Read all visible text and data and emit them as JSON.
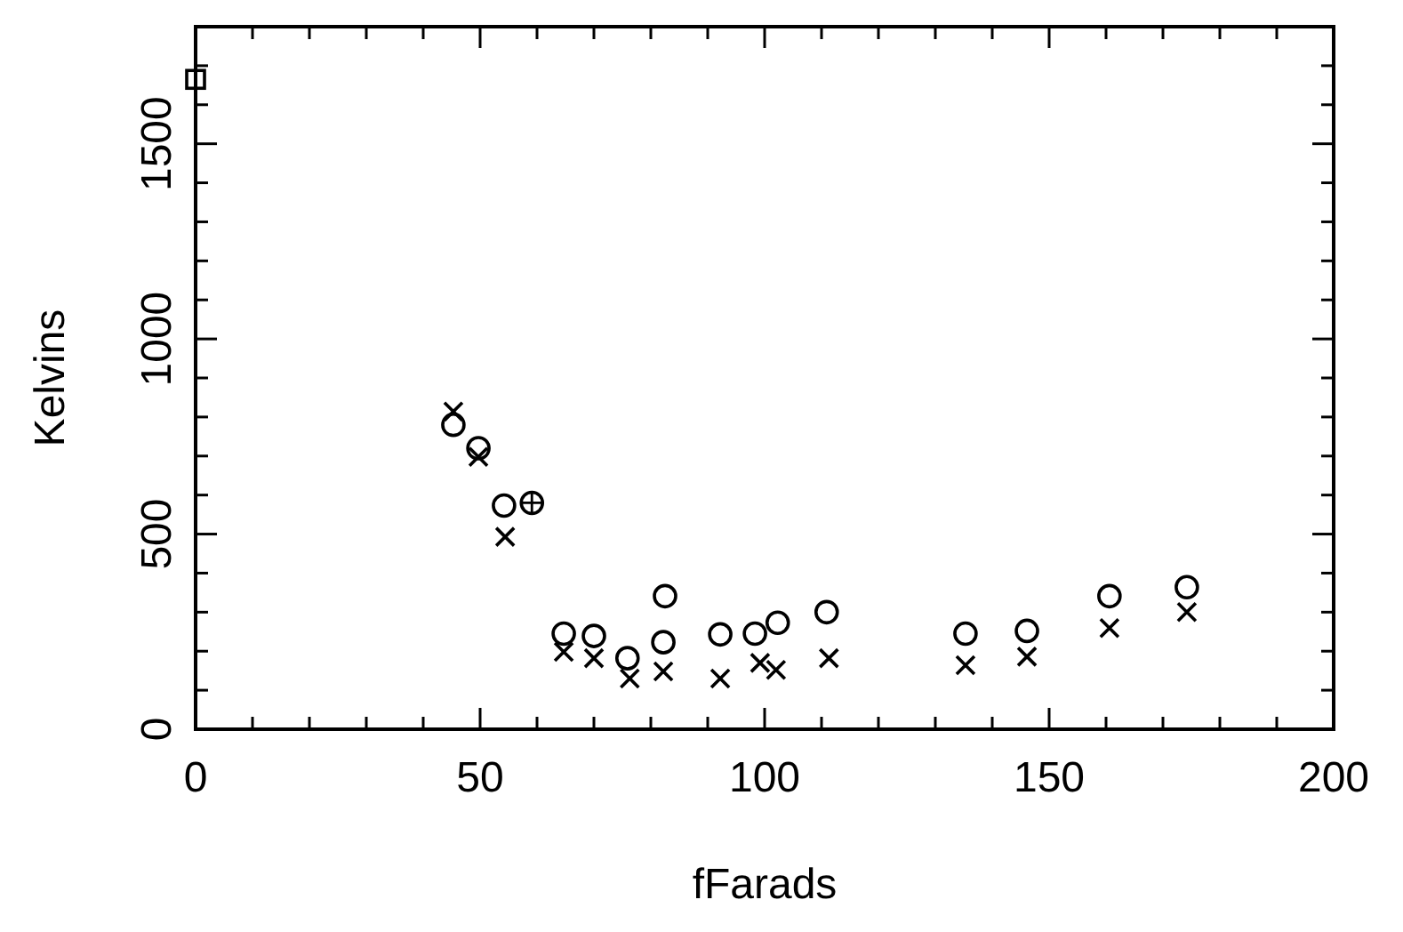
{
  "chart_data": {
    "type": "scatter",
    "xlabel": "fFarads",
    "ylabel": "Kelvins",
    "xlim": [
      0,
      200
    ],
    "ylim": [
      0,
      1800
    ],
    "xticks": [
      0,
      {
        "value": 10,
        "label": null
      },
      {
        "value": 20,
        "label": null
      },
      {
        "value": 30,
        "label": null
      },
      {
        "value": 40,
        "label": null
      },
      50,
      {
        "value": 60,
        "label": null
      },
      {
        "value": 70,
        "label": null
      },
      {
        "value": 80,
        "label": null
      },
      {
        "value": 90,
        "label": null
      },
      100,
      {
        "value": 110,
        "label": null
      },
      {
        "value": 120,
        "label": null
      },
      {
        "value": 130,
        "label": null
      },
      {
        "value": 140,
        "label": null
      },
      150,
      {
        "value": 160,
        "label": null
      },
      {
        "value": 170,
        "label": null
      },
      {
        "value": 180,
        "label": null
      },
      {
        "value": 190,
        "label": null
      },
      200
    ],
    "yticks": [
      0,
      {
        "value": 100,
        "label": null
      },
      {
        "value": 200,
        "label": null
      },
      {
        "value": 300,
        "label": null
      },
      {
        "value": 400,
        "label": null
      },
      500,
      {
        "value": 600,
        "label": null
      },
      {
        "value": 700,
        "label": null
      },
      {
        "value": 800,
        "label": null
      },
      {
        "value": 900,
        "label": null
      },
      1000,
      {
        "value": 1100,
        "label": null
      },
      {
        "value": 1200,
        "label": null
      },
      {
        "value": 1300,
        "label": null
      },
      {
        "value": 1400,
        "label": null
      },
      1500,
      {
        "value": 1600,
        "label": null
      },
      {
        "value": 1700,
        "label": null
      },
      {
        "value": 1800,
        "label": null
      }
    ],
    "grid": false,
    "series": [
      {
        "color": "#000000",
        "marker": "square",
        "x": [
          0
        ],
        "values": [
          1665
        ]
      },
      {
        "color": "#000000",
        "marker": "circle",
        "x": [
          45.3,
          49.7,
          54.2,
          59.1,
          64.7,
          70,
          75.9,
          82.2,
          82.5,
          92.2,
          98.3,
          102.3,
          110.9,
          135.3,
          146.1,
          160.6,
          174.2
        ],
        "values": [
          780,
          720,
          573,
          580,
          245,
          239,
          182,
          223,
          341,
          243,
          245,
          273,
          300,
          245,
          252,
          341,
          364
        ]
      },
      {
        "color": "#000000",
        "marker": "cross",
        "x": [
          45.3,
          49.7,
          54.4,
          64.7,
          70,
          76.3,
          82.2,
          92.2,
          99.2,
          102,
          111.3,
          135.3,
          146.1,
          160.6,
          174.2
        ],
        "values": [
          814,
          698,
          493,
          198,
          182,
          130,
          148,
          130,
          170,
          152,
          182,
          164,
          186,
          259,
          300
        ]
      },
      {
        "color": "#000000",
        "marker": "plus",
        "x": [
          59.1
        ],
        "values": [
          580
        ]
      }
    ]
  }
}
